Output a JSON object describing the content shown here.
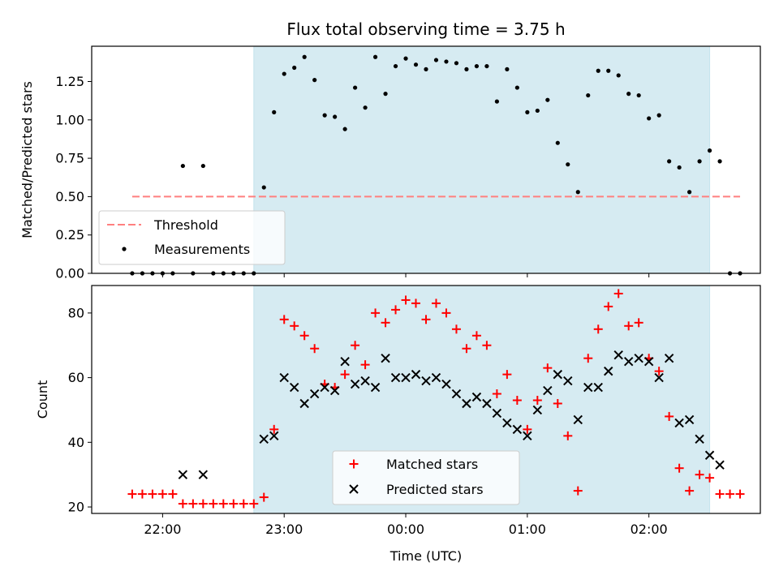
{
  "chart_data": [
    {
      "type": "scatter",
      "title": "Flux total observing time = 3.75 h",
      "ylabel": "Matched/Predicted stars",
      "xlabel": "",
      "x_unit": "Time (UTC)",
      "ylim": [
        0,
        1.48
      ],
      "yticks": [
        "0.00",
        "0.25",
        "0.50",
        "0.75",
        "1.00",
        "1.25"
      ],
      "shaded_interval": {
        "start": "22:45",
        "end": "02:30",
        "color": "#add8e6"
      },
      "threshold": {
        "name": "Threshold",
        "value": 0.5,
        "x_start": "21:45",
        "x_end": "02:45",
        "color": "#ff7f7f",
        "style": "dashed"
      },
      "series": [
        {
          "name": "Measurements",
          "marker": "dot",
          "color": "#000000",
          "points": [
            [
              "21:45",
              0.0
            ],
            [
              "21:50",
              0.0
            ],
            [
              "21:55",
              0.0
            ],
            [
              "22:00",
              0.0
            ],
            [
              "22:05",
              0.0
            ],
            [
              "22:10",
              0.7
            ],
            [
              "22:15",
              0.0
            ],
            [
              "22:20",
              0.7
            ],
            [
              "22:25",
              0.0
            ],
            [
              "22:30",
              0.0
            ],
            [
              "22:35",
              0.0
            ],
            [
              "22:40",
              0.0
            ],
            [
              "22:45",
              0.0
            ],
            [
              "22:50",
              0.56
            ],
            [
              "22:55",
              1.05
            ],
            [
              "23:00",
              1.3
            ],
            [
              "23:05",
              1.34
            ],
            [
              "23:10",
              1.41
            ],
            [
              "23:15",
              1.26
            ],
            [
              "23:20",
              1.03
            ],
            [
              "23:25",
              1.02
            ],
            [
              "23:30",
              0.94
            ],
            [
              "23:35",
              1.21
            ],
            [
              "23:40",
              1.08
            ],
            [
              "23:45",
              1.41
            ],
            [
              "23:50",
              1.17
            ],
            [
              "23:55",
              1.35
            ],
            [
              "00:00",
              1.4
            ],
            [
              "00:05",
              1.36
            ],
            [
              "00:10",
              1.33
            ],
            [
              "00:15",
              1.39
            ],
            [
              "00:20",
              1.38
            ],
            [
              "00:25",
              1.37
            ],
            [
              "00:30",
              1.33
            ],
            [
              "00:35",
              1.35
            ],
            [
              "00:40",
              1.35
            ],
            [
              "00:45",
              1.12
            ],
            [
              "00:50",
              1.33
            ],
            [
              "00:55",
              1.21
            ],
            [
              "01:00",
              1.05
            ],
            [
              "01:05",
              1.06
            ],
            [
              "01:10",
              1.13
            ],
            [
              "01:15",
              0.85
            ],
            [
              "01:20",
              0.71
            ],
            [
              "01:25",
              0.53
            ],
            [
              "01:30",
              1.16
            ],
            [
              "01:35",
              1.32
            ],
            [
              "01:40",
              1.32
            ],
            [
              "01:45",
              1.29
            ],
            [
              "01:50",
              1.17
            ],
            [
              "01:55",
              1.16
            ],
            [
              "02:00",
              1.01
            ],
            [
              "02:05",
              1.03
            ],
            [
              "02:10",
              0.73
            ],
            [
              "02:15",
              0.69
            ],
            [
              "02:20",
              0.53
            ],
            [
              "02:25",
              0.73
            ],
            [
              "02:30",
              0.8
            ],
            [
              "02:35",
              0.73
            ],
            [
              "02:40",
              0.0
            ],
            [
              "02:45",
              0.0
            ]
          ]
        }
      ],
      "legend": {
        "position": "lower left",
        "entries": [
          "Threshold",
          "Measurements"
        ]
      }
    },
    {
      "type": "scatter",
      "title": "",
      "ylabel": "Count",
      "xlabel": "Time (UTC)",
      "ylim": [
        18,
        88.5
      ],
      "yticks": [
        "20",
        "40",
        "60",
        "80"
      ],
      "xlim": [
        "21:25",
        "02:55"
      ],
      "xticks": [
        "22:00",
        "23:00",
        "00:00",
        "01:00",
        "02:00"
      ],
      "shaded_interval": {
        "start": "22:45",
        "end": "02:30",
        "color": "#add8e6"
      },
      "series": [
        {
          "name": "Matched stars",
          "marker": "plus",
          "color": "#ff0000",
          "points": [
            [
              "21:45",
              24
            ],
            [
              "21:50",
              24
            ],
            [
              "21:55",
              24
            ],
            [
              "22:00",
              24
            ],
            [
              "22:05",
              24
            ],
            [
              "22:10",
              21
            ],
            [
              "22:15",
              21
            ],
            [
              "22:20",
              21
            ],
            [
              "22:25",
              21
            ],
            [
              "22:30",
              21
            ],
            [
              "22:35",
              21
            ],
            [
              "22:40",
              21
            ],
            [
              "22:45",
              21
            ],
            [
              "22:50",
              23
            ],
            [
              "22:55",
              44
            ],
            [
              "23:00",
              78
            ],
            [
              "23:05",
              76
            ],
            [
              "23:10",
              73
            ],
            [
              "23:15",
              69
            ],
            [
              "23:20",
              58
            ],
            [
              "23:25",
              57
            ],
            [
              "23:30",
              61
            ],
            [
              "23:35",
              70
            ],
            [
              "23:40",
              64
            ],
            [
              "23:45",
              80
            ],
            [
              "23:50",
              77
            ],
            [
              "23:55",
              81
            ],
            [
              "00:00",
              84
            ],
            [
              "00:05",
              83
            ],
            [
              "00:10",
              78
            ],
            [
              "00:15",
              83
            ],
            [
              "00:20",
              80
            ],
            [
              "00:25",
              75
            ],
            [
              "00:30",
              69
            ],
            [
              "00:35",
              73
            ],
            [
              "00:40",
              70
            ],
            [
              "00:45",
              55
            ],
            [
              "00:50",
              61
            ],
            [
              "00:55",
              53
            ],
            [
              "01:00",
              44
            ],
            [
              "01:05",
              53
            ],
            [
              "01:10",
              63
            ],
            [
              "01:15",
              52
            ],
            [
              "01:20",
              42
            ],
            [
              "01:25",
              25
            ],
            [
              "01:30",
              66
            ],
            [
              "01:35",
              75
            ],
            [
              "01:40",
              82
            ],
            [
              "01:45",
              86
            ],
            [
              "01:50",
              76
            ],
            [
              "01:55",
              77
            ],
            [
              "02:00",
              66
            ],
            [
              "02:05",
              62
            ],
            [
              "02:10",
              48
            ],
            [
              "02:15",
              32
            ],
            [
              "02:20",
              25
            ],
            [
              "02:25",
              30
            ],
            [
              "02:30",
              29
            ],
            [
              "02:35",
              24
            ],
            [
              "02:40",
              24
            ],
            [
              "02:45",
              24
            ]
          ]
        },
        {
          "name": "Predicted stars",
          "marker": "x",
          "color": "#000000",
          "points": [
            [
              "22:10",
              30
            ],
            [
              "22:20",
              30
            ],
            [
              "22:50",
              41
            ],
            [
              "22:55",
              42
            ],
            [
              "23:00",
              60
            ],
            [
              "23:05",
              57
            ],
            [
              "23:10",
              52
            ],
            [
              "23:15",
              55
            ],
            [
              "23:20",
              57
            ],
            [
              "23:25",
              56
            ],
            [
              "23:30",
              65
            ],
            [
              "23:35",
              58
            ],
            [
              "23:40",
              59
            ],
            [
              "23:45",
              57
            ],
            [
              "23:50",
              66
            ],
            [
              "23:55",
              60
            ],
            [
              "00:00",
              60
            ],
            [
              "00:05",
              61
            ],
            [
              "00:10",
              59
            ],
            [
              "00:15",
              60
            ],
            [
              "00:20",
              58
            ],
            [
              "00:25",
              55
            ],
            [
              "00:30",
              52
            ],
            [
              "00:35",
              54
            ],
            [
              "00:40",
              52
            ],
            [
              "00:45",
              49
            ],
            [
              "00:50",
              46
            ],
            [
              "00:55",
              44
            ],
            [
              "01:00",
              42
            ],
            [
              "01:05",
              50
            ],
            [
              "01:10",
              56
            ],
            [
              "01:15",
              61
            ],
            [
              "01:20",
              59
            ],
            [
              "01:25",
              47
            ],
            [
              "01:30",
              57
            ],
            [
              "01:35",
              57
            ],
            [
              "01:40",
              62
            ],
            [
              "01:45",
              67
            ],
            [
              "01:50",
              65
            ],
            [
              "01:55",
              66
            ],
            [
              "02:00",
              65
            ],
            [
              "02:05",
              60
            ],
            [
              "02:10",
              66
            ],
            [
              "02:15",
              46
            ],
            [
              "02:20",
              47
            ],
            [
              "02:25",
              41
            ],
            [
              "02:30",
              36
            ],
            [
              "02:35",
              33
            ]
          ]
        }
      ],
      "legend": {
        "position": "lower center",
        "entries": [
          "Matched stars",
          "Predicted stars"
        ]
      }
    }
  ]
}
